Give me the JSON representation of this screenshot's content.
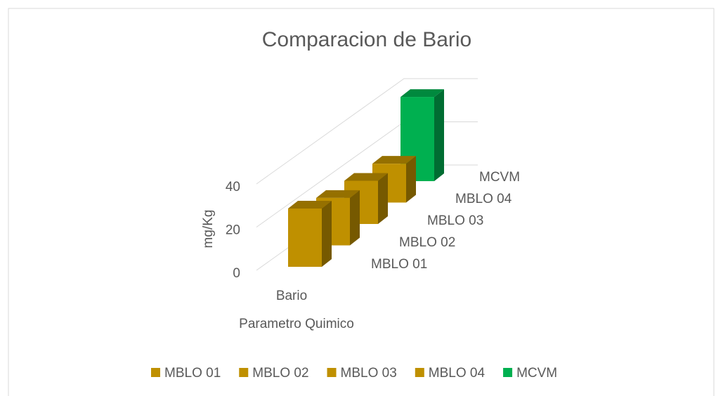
{
  "chart_data": {
    "type": "bar3d",
    "title": "Comparacion de Bario",
    "y_label": "mg/Kg",
    "x_label": "Parametro Quimico",
    "categories": [
      "Bario"
    ],
    "series": [
      {
        "name": "MBLO 01",
        "color": "#bf9000",
        "values": [
          27
        ]
      },
      {
        "name": "MBLO 02",
        "color": "#bf9000",
        "values": [
          22
        ]
      },
      {
        "name": "MBLO 03",
        "color": "#bf9000",
        "values": [
          20
        ]
      },
      {
        "name": "MBLO 04",
        "color": "#bf9000",
        "values": [
          18
        ]
      },
      {
        "name": "MCVM",
        "color": "#00b050",
        "values": [
          39
        ]
      }
    ],
    "ylim": [
      0,
      40
    ],
    "yticks": [
      0,
      20,
      40
    ],
    "grid": true,
    "legend": "bottom"
  }
}
